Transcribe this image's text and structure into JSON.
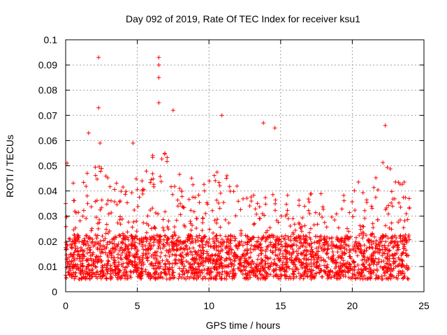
{
  "chart_data": {
    "type": "scatter",
    "title": "Day 092 of 2019, Rate Of TEC Index for receiver ksu1",
    "xlabel": "GPS time / hours",
    "ylabel": "ROTI / TECUs",
    "xlim": [
      0,
      25
    ],
    "ylim": [
      0,
      0.1
    ],
    "xticks": [
      0,
      5,
      10,
      15,
      20,
      25
    ],
    "xtick_labels": [
      "0",
      "5",
      "10",
      "15",
      "20",
      "25"
    ],
    "yticks": [
      0,
      0.01,
      0.02,
      0.03,
      0.04,
      0.05,
      0.06,
      0.07,
      0.08,
      0.09,
      0.1
    ],
    "ytick_labels": [
      "0",
      "0.01",
      "0.02",
      "0.03",
      "0.04",
      "0.05",
      "0.06",
      "0.07",
      "0.08",
      "0.09",
      "0.1"
    ],
    "grid": true,
    "marker": "+",
    "color": "#ff0000",
    "data_time_range": [
      0,
      24
    ],
    "bulk_band": [
      0.005,
      0.03
    ],
    "notable_peaks": [
      {
        "x": 2.3,
        "y": 0.093
      },
      {
        "x": 6.5,
        "y": 0.093
      },
      {
        "x": 6.5,
        "y": 0.09
      },
      {
        "x": 6.5,
        "y": 0.085
      },
      {
        "x": 6.5,
        "y": 0.075
      },
      {
        "x": 2.3,
        "y": 0.073
      },
      {
        "x": 7.5,
        "y": 0.072
      },
      {
        "x": 10.9,
        "y": 0.07
      },
      {
        "x": 13.8,
        "y": 0.067
      },
      {
        "x": 22.3,
        "y": 0.066
      },
      {
        "x": 14.6,
        "y": 0.065
      },
      {
        "x": 1.6,
        "y": 0.063
      },
      {
        "x": 2.4,
        "y": 0.059
      },
      {
        "x": 4.7,
        "y": 0.059
      },
      {
        "x": 0.1,
        "y": 0.051
      },
      {
        "x": 0.0,
        "y": 0.035
      }
    ]
  }
}
